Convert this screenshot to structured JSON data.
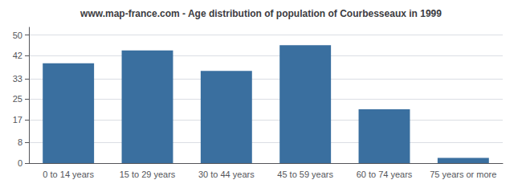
{
  "chart_data": {
    "type": "bar",
    "title": "www.map-france.com - Age distribution of population of Courbesseaux in 1999",
    "categories": [
      "0 to 14 years",
      "15 to 29 years",
      "30 to 44 years",
      "45 to 59 years",
      "60 to 74 years",
      "75 years or more"
    ],
    "values": [
      39,
      44,
      36,
      46,
      21,
      2
    ],
    "color": "#3a6f9f",
    "ylim": [
      0,
      53
    ],
    "yticks": [
      0,
      8,
      17,
      25,
      33,
      42,
      50
    ],
    "grid": true
  }
}
